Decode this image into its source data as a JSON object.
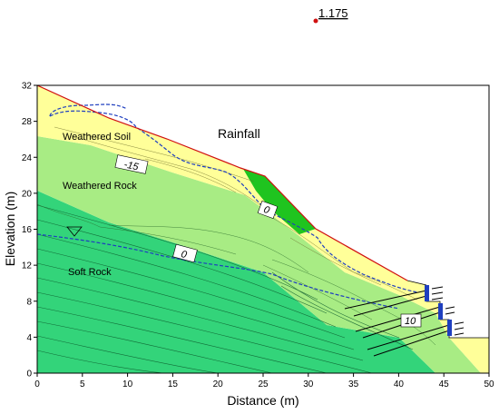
{
  "axes": {
    "xlabel": "Distance (m)",
    "ylabel": "Elevation (m)",
    "xticks": [
      "0",
      "5",
      "10",
      "15",
      "20",
      "25",
      "30",
      "35",
      "40",
      "45",
      "50"
    ],
    "yticks": [
      "0",
      "4",
      "8",
      "12",
      "16",
      "20",
      "24",
      "28",
      "32"
    ],
    "xlim": [
      0,
      50
    ],
    "ylim": [
      0,
      32
    ]
  },
  "layers": {
    "weathered_soil": "Weathered Soil",
    "weathered_rock": "Weathered Rock",
    "soft_rock": "Soft Rock"
  },
  "annotations": {
    "rainfall": "Rainfall",
    "factor_of_safety": "1.175",
    "contour_a": "-15",
    "contour_b": "0",
    "contour_c": "0",
    "contour_d": "10"
  },
  "colors": {
    "weathered_soil": "#ffff99",
    "weathered_rock": "#a8ec84",
    "soft_rock": "#33d47a",
    "slip_zone": "#1fc41f",
    "water_table": "#1f3fbf",
    "surface_line": "#d01010",
    "anchor_plate": "#1f3fbf"
  }
}
